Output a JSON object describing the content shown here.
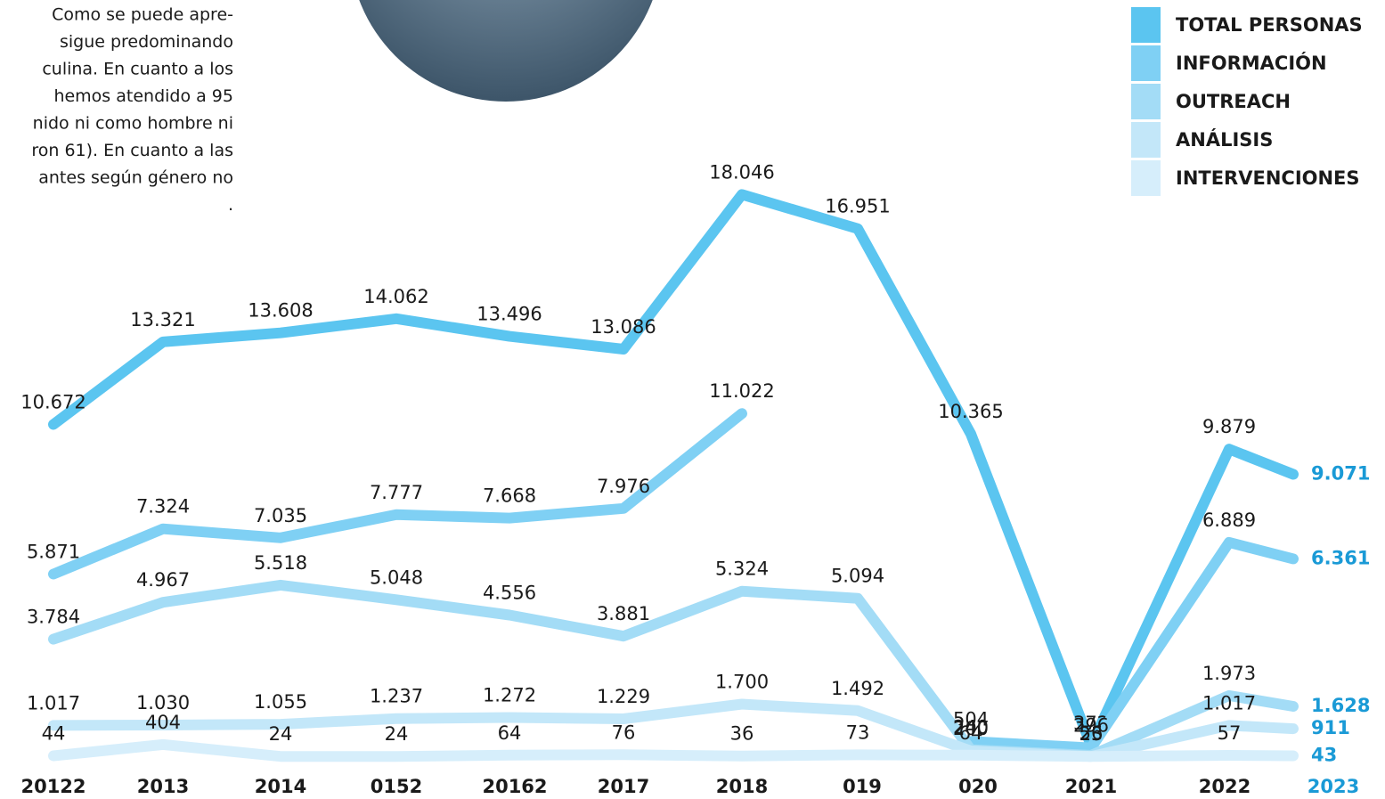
{
  "intro_text": [
    "Como se puede apre-",
    "sigue predominando",
    "culina. En cuanto a los",
    "hemos atendido a 95",
    "nido ni como hombre ni",
    "ron 61). En cuanto a las",
    "antes según género no",
    "."
  ],
  "chart_data": {
    "type": "line",
    "categories": [
      "20122",
      "2013",
      "2014",
      "0152",
      "20162",
      "2017",
      "2018",
      "019",
      "020",
      "2021",
      "2022",
      "2023"
    ],
    "ylim": [
      0,
      24000
    ],
    "legend": "top-right",
    "series": [
      {
        "name": "TOTAL PERSONAS",
        "color": "#5bc5f0",
        "values": [
          10672,
          13321,
          13608,
          14062,
          13496,
          13086,
          18046,
          16951,
          10365,
          372,
          9879,
          9071
        ],
        "value_labels": [
          "10.672",
          "13.321",
          "13.608",
          "14.062",
          "13.496",
          "13.086",
          "18.046",
          "16.951",
          "10.365",
          "372",
          "9.879",
          "9.071"
        ]
      },
      {
        "name": "INFORMACIÓN",
        "color": "#7fd0f4",
        "values": [
          5871,
          7324,
          7035,
          7777,
          7668,
          7976,
          11022,
          null,
          504,
          296,
          6889,
          6361
        ],
        "value_labels": [
          "5.871",
          "7.324",
          "7.035",
          "7.777",
          "7.668",
          "7.976",
          "11.022",
          null,
          "504",
          "296",
          "6.889",
          "6.361"
        ]
      },
      {
        "name": "OUTREACH",
        "color": "#a3dcf6",
        "values": [
          3784,
          4967,
          5518,
          5048,
          4556,
          3881,
          5324,
          5094,
          240,
          56,
          1973,
          1628
        ],
        "value_labels": [
          "3.784",
          "4.967",
          "5.518",
          "5.048",
          "4.556",
          "3.881",
          "5.324",
          "5.094",
          "240",
          "56",
          "1.973",
          "1.628"
        ]
      },
      {
        "name": "ANÁLISIS",
        "color": "#c3e7f9",
        "values": [
          1017,
          1030,
          1055,
          1237,
          1272,
          1229,
          1700,
          1492,
          200,
          23,
          1017,
          911
        ],
        "value_labels": [
          "1.017",
          "1.030",
          "1.055",
          "1.237",
          "1.272",
          "1.229",
          "1.700",
          "1.492",
          "200",
          "23",
          "1.017",
          "911"
        ]
      },
      {
        "name": "INTERVENCIONES",
        "color": "#d6eefb",
        "values": [
          44,
          404,
          24,
          24,
          64,
          76,
          36,
          73,
          64,
          23,
          57,
          43
        ]
      }
    ]
  }
}
